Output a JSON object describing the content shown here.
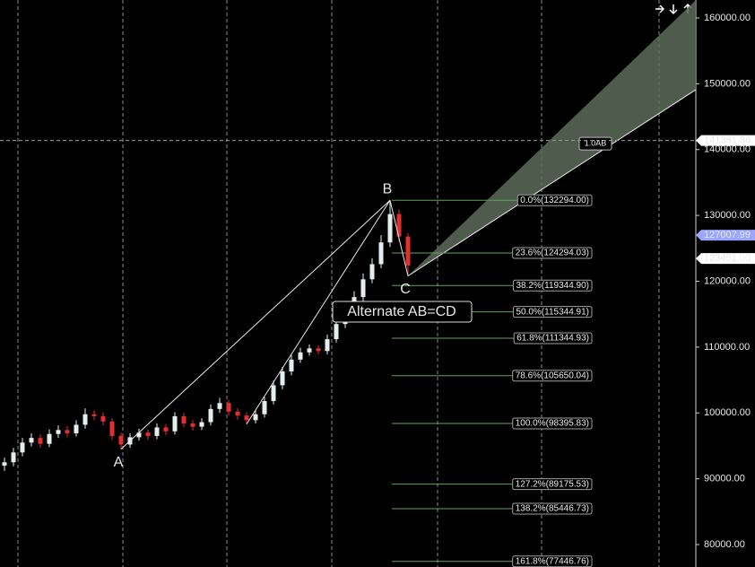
{
  "chart_data": {
    "type": "candlestick",
    "open": [
      92000,
      92500,
      94000,
      95500,
      96200,
      95300,
      96800,
      97400,
      96900,
      98200,
      99800,
      99500,
      98700,
      96500,
      95200,
      96300,
      97000,
      96500,
      97800,
      97200,
      99500,
      98400,
      97900,
      98600,
      100600,
      101500,
      100200,
      99600,
      98900,
      99800,
      101800,
      104200,
      106300,
      108100,
      109200,
      109800,
      109400,
      111200,
      113500,
      115200,
      117600,
      120300,
      122600,
      125900,
      130200,
      126800
    ],
    "high": [
      93200,
      94700,
      96200,
      96900,
      96800,
      97500,
      98100,
      98000,
      98900,
      100700,
      100400,
      100100,
      99200,
      97000,
      96900,
      97600,
      97500,
      98400,
      98300,
      100100,
      100000,
      98900,
      99200,
      101300,
      102300,
      102000,
      100700,
      100100,
      100400,
      102400,
      104900,
      107000,
      108800,
      109900,
      110400,
      110300,
      111900,
      114300,
      116000,
      118500,
      121200,
      123500,
      127000,
      132294,
      130900,
      127300
    ],
    "low": [
      91200,
      91900,
      93400,
      94900,
      94700,
      94800,
      96200,
      96300,
      96400,
      97600,
      98900,
      98100,
      95900,
      94500,
      94700,
      95800,
      95900,
      96000,
      96600,
      96700,
      97800,
      97300,
      97400,
      98100,
      100000,
      99600,
      99000,
      98300,
      98400,
      99300,
      101300,
      103600,
      105700,
      107600,
      108700,
      108900,
      108900,
      110700,
      112900,
      114700,
      117000,
      119700,
      122000,
      125200,
      126000,
      120800
    ],
    "close": [
      92500,
      94000,
      95500,
      96200,
      95300,
      96800,
      97400,
      96900,
      98200,
      99800,
      99500,
      98700,
      96500,
      95200,
      96300,
      97000,
      96500,
      97800,
      97200,
      99500,
      98400,
      97900,
      98600,
      100600,
      101500,
      100200,
      99600,
      98900,
      99800,
      101800,
      104200,
      106300,
      108100,
      109200,
      109800,
      109400,
      111200,
      113500,
      115200,
      117600,
      120300,
      122600,
      125900,
      130200,
      126800,
      122400
    ],
    "up_color": "#e4eeee",
    "down_color": "#e03030",
    "ylim": [
      162725,
      76594
    ],
    "yticks": [
      {
        "value": 160000,
        "label": "160000.00"
      },
      {
        "value": 150000,
        "label": "150000.00"
      },
      {
        "value": 140000,
        "label": "140000.00"
      },
      {
        "value": 130000,
        "label": "130000.00"
      },
      {
        "value": 120000,
        "label": "120000.00"
      },
      {
        "value": 110000,
        "label": "110000.00"
      },
      {
        "value": 100000,
        "label": "100000.00"
      },
      {
        "value": 90000,
        "label": "90000.00"
      },
      {
        "value": 80000,
        "label": "80000.00"
      }
    ],
    "pattern_points": [
      {
        "label": "A",
        "index": 13,
        "price": 94500
      },
      {
        "label": "B",
        "index": 43,
        "price": 132294
      },
      {
        "label": "C",
        "index": 45,
        "price": 120800
      },
      {
        "index": 27,
        "price": 98300
      }
    ],
    "annotation": "Alternate AB=CD",
    "projection": {
      "label": "1.0AB",
      "price": 140900,
      "upper_end": 162700,
      "lower_end": 149100
    },
    "fib_levels": [
      {
        "label": "0.0%(132294.00)",
        "price": 132294.0
      },
      {
        "label": "23.6%(124294.03)",
        "price": 124294.03
      },
      {
        "label": "38.2%(119344.90)",
        "price": 119344.9
      },
      {
        "label": "50.0%(115344.91)",
        "price": 115344.91
      },
      {
        "label": "61.8%(111344.93)",
        "price": 111344.93
      },
      {
        "label": "78.6%(105650.04)",
        "price": 105650.04
      },
      {
        "label": "100.0%(98395.83)",
        "price": 98395.83
      },
      {
        "label": "127.2%(89175.53)",
        "price": 89175.53
      },
      {
        "label": "138.2%(85446.73)",
        "price": 85446.73
      },
      {
        "label": "161.8%(77446.76)",
        "price": 77446.76
      }
    ],
    "price_tags": [
      {
        "label": "141381.36",
        "price": 141381.36,
        "color": "#ffffff"
      },
      {
        "label": "127007.99",
        "price": 127007.99,
        "color": "#9aa6ff"
      },
      {
        "label": "123451.00",
        "price": 123451.0,
        "color": "#ffffff"
      }
    ]
  }
}
